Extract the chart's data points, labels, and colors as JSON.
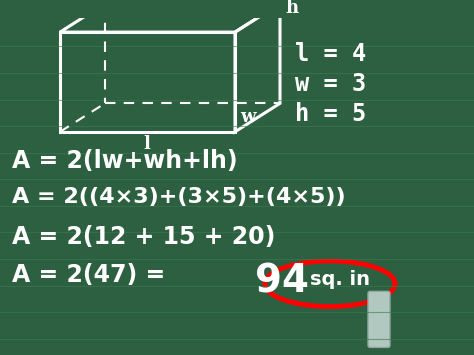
{
  "bg_color": "#2d6040",
  "line_color": "#3a7a50",
  "text_color": "white",
  "chalk_color": "white",
  "red_circle_color": "red",
  "formula_lines": [
    "A = 2(lw+wh+lh)",
    "A = 2((4×3)+(3×5)+(4×5))",
    "A = 2(12 + 15 + 20)",
    "A = 2(47) = "
  ],
  "result_text": "94 sq. in",
  "variables": [
    "l = 4",
    "w = 3",
    "h = 5"
  ],
  "fig_width": 4.74,
  "fig_height": 3.55,
  "dpi": 100
}
